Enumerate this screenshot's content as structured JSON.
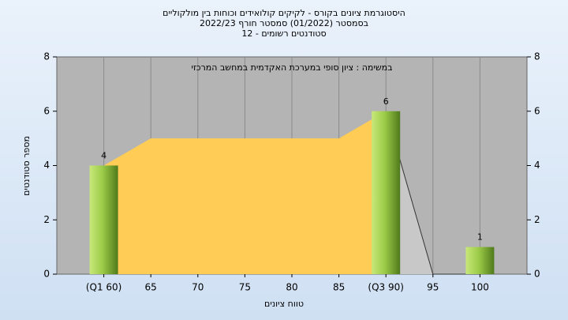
{
  "chart_data": {
    "type": "bar",
    "title": "היסטוגרמת ציונים בקורס - לקיקים קולואידים וכוחות בין מולקוליים",
    "subtitle": "בסמסטר  (01/2022)  סמסטר חורף 2022/23",
    "subtitle2": "סטודנטים רשומים - 12",
    "annotation": "במשימה : ציון סופי במערכת האקדמית במחשב המרכזי",
    "x_label": "טווח ציונים",
    "y_label": "מספר סטודנטים",
    "categories": [
      "(Q1 60)",
      "65",
      "70",
      "75",
      "80",
      "85",
      "(Q3 90)",
      "95",
      "100"
    ],
    "values": [
      4,
      null,
      null,
      null,
      null,
      null,
      6,
      null,
      1
    ],
    "color": "#8fbf3a",
    "area_series": [
      {
        "color": "#ffcc55",
        "values": [
          4,
          5,
          5,
          5,
          5,
          5,
          6,
          null,
          null
        ]
      },
      {
        "color": "#c8c8c8",
        "values": [
          null,
          null,
          null,
          null,
          null,
          null,
          6,
          0,
          0
        ]
      }
    ],
    "ylim": [
      0,
      8
    ],
    "yticks": [
      0,
      2,
      4,
      6,
      8
    ],
    "y2lim": [
      0,
      8
    ],
    "y2ticks": [
      0,
      2,
      4,
      6,
      8
    ],
    "grid": true
  }
}
